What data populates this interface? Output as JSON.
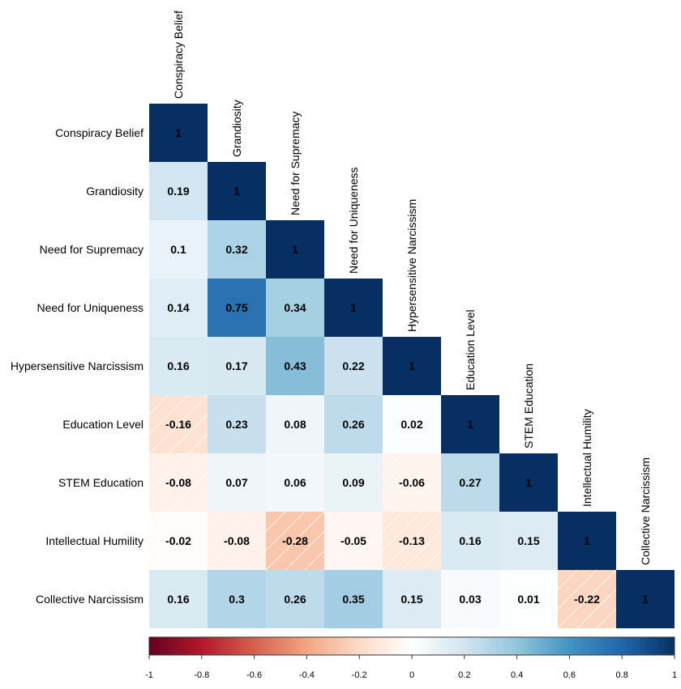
{
  "chart_data": {
    "type": "heatmap",
    "variables": [
      "Conspiracy Belief",
      "Grandiosity",
      "Need for Supremacy",
      "Need for Uniqueness",
      "Hypersensitive Narcissism",
      "Education Level",
      "STEM Education",
      "Intellectual Humility",
      "Collective Narcissism"
    ],
    "matrix": [
      [
        1
      ],
      [
        0.19,
        1
      ],
      [
        0.1,
        0.32,
        1
      ],
      [
        0.14,
        0.75,
        0.34,
        1
      ],
      [
        0.16,
        0.17,
        0.43,
        0.22,
        1
      ],
      [
        -0.16,
        0.23,
        0.08,
        0.26,
        0.02,
        1
      ],
      [
        -0.08,
        0.07,
        0.06,
        0.09,
        -0.06,
        0.27,
        1
      ],
      [
        -0.02,
        -0.08,
        -0.28,
        -0.05,
        -0.13,
        0.16,
        0.15,
        1
      ],
      [
        0.16,
        0.3,
        0.26,
        0.35,
        0.15,
        0.03,
        0.01,
        -0.22,
        1
      ]
    ],
    "color_scale": {
      "range": [
        -1,
        1
      ],
      "ticks": [
        "-1",
        "-0.8",
        "-0.6",
        "-0.4",
        "-0.2",
        "0",
        "0.2",
        "0.4",
        "0.6",
        "0.8",
        "1"
      ],
      "colors": [
        "#67001f",
        "#b2182b",
        "#d6604d",
        "#f4a582",
        "#fddbc7",
        "#ffffff",
        "#d1e5f0",
        "#92c5de",
        "#4393c3",
        "#2166ac",
        "#053061"
      ]
    },
    "triangle": "lower",
    "diagonal_shown": true
  }
}
